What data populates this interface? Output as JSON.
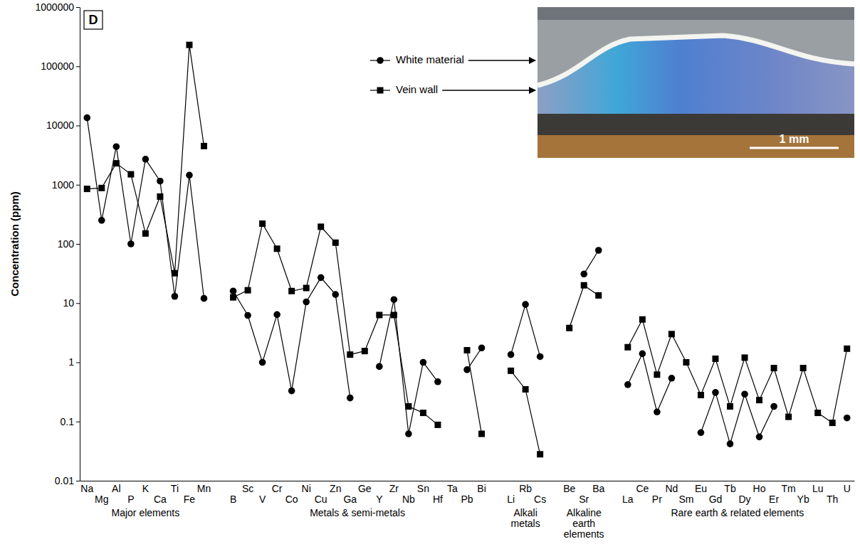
{
  "chart_data": {
    "type": "line",
    "panel_label": "D",
    "y_label": "Concentration (ppm)",
    "log": "y",
    "grid": false,
    "legend": "top right",
    "scale_bar_label": "1 mm",
    "categories": [
      "Na",
      "Mg",
      "Al",
      "P",
      "K",
      "Ca",
      "Ti",
      "Fe",
      "Mn",
      null,
      "B",
      "Sc",
      "V",
      "Cr",
      "Co",
      "Ni",
      "Cu",
      "Zn",
      "Ga",
      "Ge",
      "Y",
      "Zr",
      "Nb",
      "Sn",
      "Hf",
      "Ta",
      "Pb",
      "Bi",
      null,
      "Li",
      "Rb",
      "Cs",
      null,
      "Be",
      "Sr",
      "Ba",
      null,
      "La",
      "Ce",
      "Pr",
      "Nd",
      "Sm",
      "Eu",
      "Gd",
      "Tb",
      "Dy",
      "Ho",
      "Er",
      "Tm",
      "Yb",
      "Lu",
      "Th",
      "U"
    ],
    "ylim": [
      0.01,
      1000000
    ],
    "yticks": [
      0.01,
      0.1,
      1,
      10,
      100,
      1000,
      10000,
      100000,
      1000000
    ],
    "series": [
      {
        "name": "White material",
        "color": "#000000",
        "marker": "circle",
        "values": [
          13500,
          250,
          4400,
          100,
          2700,
          1150,
          13,
          1450,
          12,
          null,
          16,
          6.2,
          1,
          6.4,
          0.33,
          10.5,
          27,
          14,
          0.25,
          null,
          0.85,
          11.5,
          0.062,
          1,
          0.47,
          null,
          0.75,
          1.75,
          null,
          1.35,
          9.5,
          1.25,
          null,
          null,
          31,
          78,
          null,
          0.42,
          1.4,
          0.145,
          0.54,
          null,
          0.065,
          0.31,
          0.042,
          0.29,
          0.055,
          0.18,
          null,
          null,
          null,
          null,
          0.115
        ]
      },
      {
        "name": "Vein wall",
        "color": "#000000",
        "marker": "square",
        "values": [
          850,
          880,
          2300,
          1500,
          150,
          630,
          32,
          230000,
          4500,
          null,
          12.5,
          16.5,
          220,
          83,
          16,
          18,
          195,
          105,
          1.35,
          1.55,
          6.3,
          6.3,
          0.18,
          0.14,
          0.088,
          null,
          1.6,
          0.062,
          null,
          0.72,
          0.35,
          0.028,
          null,
          3.8,
          20,
          13.5,
          null,
          1.8,
          5.3,
          0.62,
          3,
          1,
          0.28,
          1.15,
          0.18,
          1.2,
          0.23,
          0.8,
          0.12,
          0.8,
          0.14,
          0.095,
          1.7
        ]
      }
    ],
    "annotations": [
      {
        "text": "Major elements",
        "from": "Na",
        "to": "Mn"
      },
      {
        "text": "Metals & semi-metals",
        "from": "B",
        "to": "Bi"
      },
      {
        "text": "Alkali metals",
        "from": "Li",
        "to": "Cs"
      },
      {
        "text": "Alkaline earth elements",
        "from": "Be",
        "to": "Ba"
      },
      {
        "text": "Rare earth & related elements",
        "from": "La",
        "to": "U"
      }
    ]
  }
}
